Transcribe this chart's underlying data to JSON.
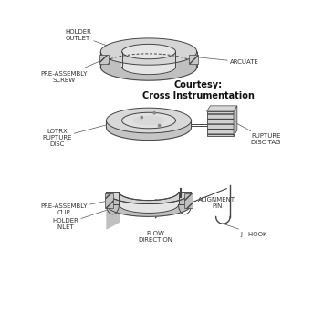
{
  "background_color": "#ffffff",
  "line_color": "#444444",
  "fill_light": "#e8e8e8",
  "fill_mid": "#cccccc",
  "fill_dark": "#aaaaaa",
  "courtesy_text": "Courtesy:\nCross Instrumentation",
  "labels": {
    "holder_outlet": "HOLDER\nOUTLET",
    "arcuate": "ARCUATE",
    "pre_assembly_screw": "PRE-ASSEMBLY\nSCREW",
    "lotrx_rupture_disc": "LOTRX\nRUPTURE\nDISC",
    "rupture_disc_tag": "RUPTURE\nDISC TAG",
    "pre_assembly_clip": "PRE-ASSEMBLY\nCLIP",
    "alignment_pin": "ALIGNMENT\nPIN",
    "holder_inlet": "HOLDER\nINLET",
    "flow_direction": "FLOW\nDIRECTION",
    "j_hook": "J - HOOK"
  },
  "figsize": [
    3.43,
    3.43
  ],
  "dpi": 100
}
